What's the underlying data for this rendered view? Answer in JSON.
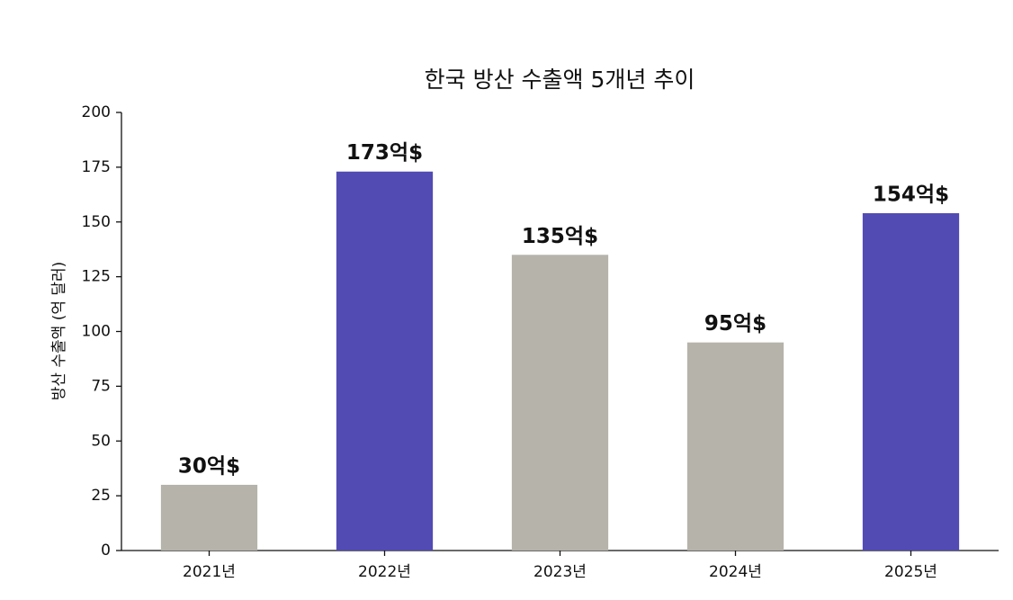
{
  "chart_data": {
    "type": "bar",
    "title": "한국 방산 수출액 5개년 추이",
    "y_label": "방산 수출액 (억 달러)",
    "categories": [
      "2021년",
      "2022년",
      "2023년",
      "2024년",
      "2025년"
    ],
    "values": [
      30,
      173,
      135,
      95,
      154
    ],
    "value_labels": [
      "30억$",
      "173억$",
      "135억$",
      "95억$",
      "154억$"
    ],
    "colors": [
      "#b5b3aa",
      "#524bb4",
      "#b5b3aa",
      "#b5b3aa",
      "#524bb4"
    ],
    "ylim": [
      0,
      200
    ],
    "yticks": [
      0,
      25,
      50,
      75,
      100,
      125,
      150,
      175,
      200
    ],
    "grid": false
  }
}
